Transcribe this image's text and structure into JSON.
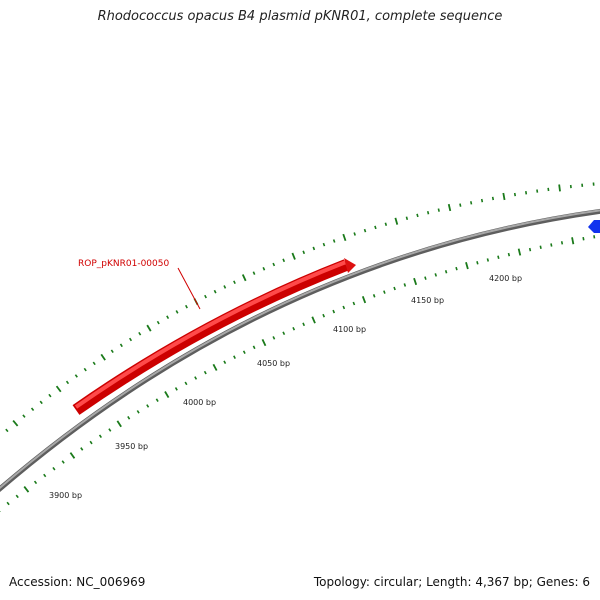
{
  "title": "Rhodococcus opacus B4 plasmid pKNR01, complete sequence",
  "footer": {
    "accession": "Accession: NC_006969",
    "summary": "Topology: circular; Length: 4,367 bp; Genes: 6"
  },
  "colors": {
    "backbone": "#8a8a8a",
    "forward_gene": "#ee1111",
    "reverse_gene": "#1133ee",
    "ticks": "#1a7a1a",
    "gene_label": "#d00000"
  },
  "scale_labels": [
    "3900 bp",
    "3950 bp",
    "4000 bp",
    "4050 bp",
    "4100 bp",
    "4150 bp",
    "4200 bp"
  ],
  "genes": [
    {
      "name": "ROP_pKNR01-00050",
      "strand": "+",
      "color": "forward_gene",
      "labeled": true
    },
    {
      "name": "",
      "strand": "-",
      "color": "reverse_gene",
      "labeled": false
    }
  ]
}
